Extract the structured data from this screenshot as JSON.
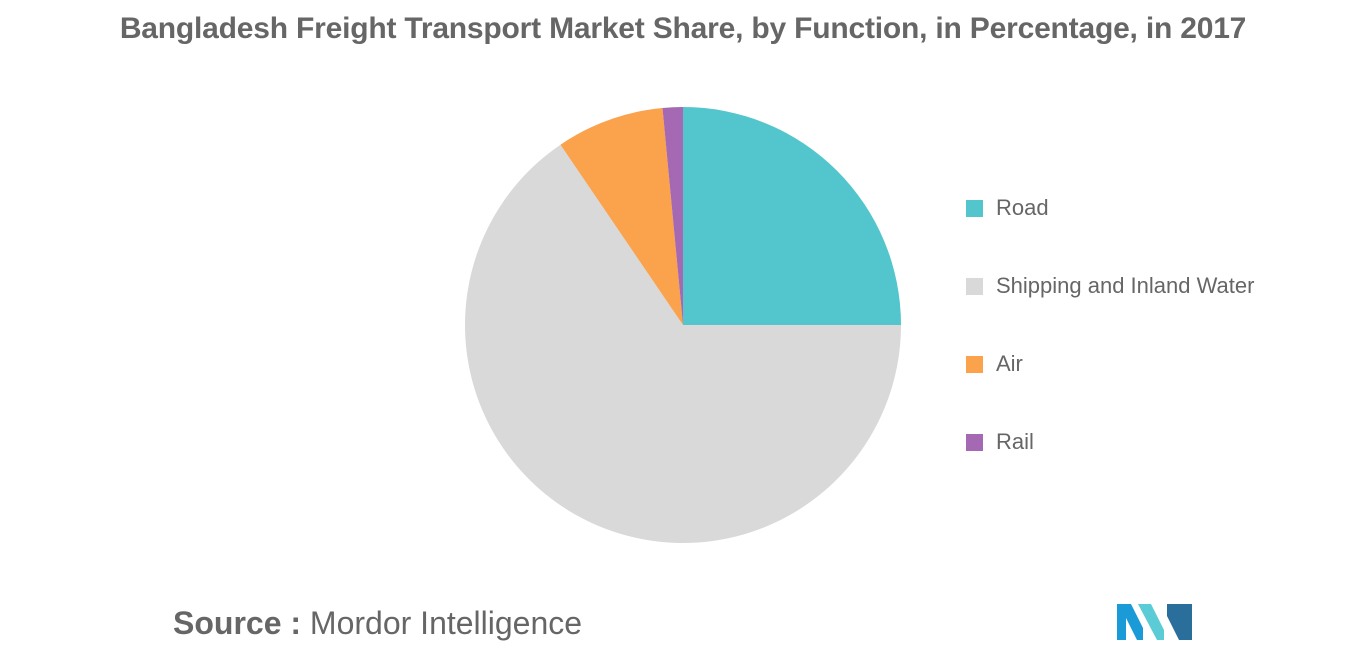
{
  "chart_data": {
    "type": "pie",
    "title": "Bangladesh Freight Transport Market Share, by Function, in Percentage, in 2017",
    "categories": [
      "Road",
      "Shipping and Inland Water",
      "Air",
      "Rail"
    ],
    "values": [
      25.0,
      65.5,
      8.0,
      1.5
    ],
    "colors": [
      "#53C5CC",
      "#D9D9D9",
      "#FAA24C",
      "#A569B4"
    ],
    "start_angle_deg": 0,
    "direction": "clockwise",
    "legend_position": "right"
  },
  "source": {
    "prefix": "Source :",
    "name": "Mordor Intelligence"
  },
  "logo": {
    "icon": "mordor-intelligence-logo",
    "colors": [
      "#1A9BD7",
      "#5BCBD5",
      "#2A6E9C"
    ]
  }
}
